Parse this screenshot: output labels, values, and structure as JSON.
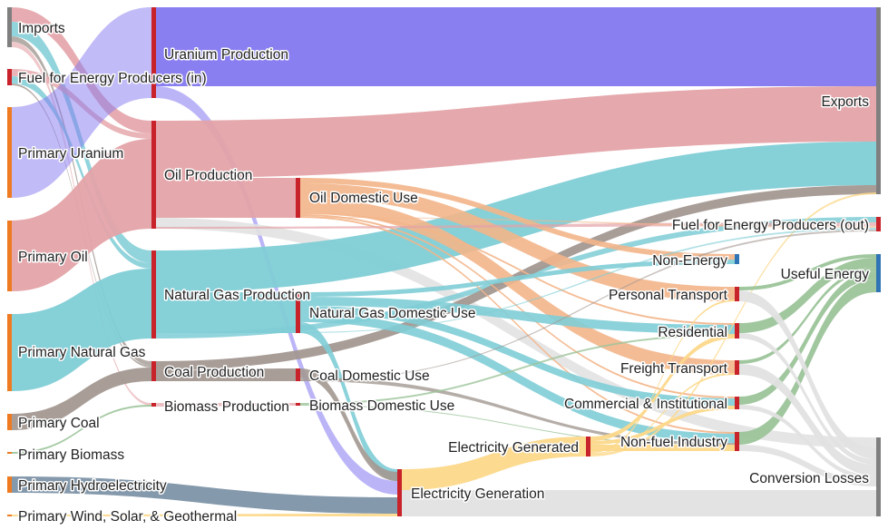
{
  "diagram": {
    "type": "sankey",
    "colors": {
      "uranium": "#8478f0",
      "oil": "#e4a3a8",
      "gas": "#7fcdd6",
      "coal": "#a39891",
      "hydro": "#7d93a8",
      "electricity": "#fcd88a",
      "oil_domestic": "#f3b58a",
      "losses": "#e2e2e2",
      "useful": "#9cc49a",
      "node_red": "#c8222a",
      "node_orange": "#ee7b22",
      "node_gray": "#7f7f7f",
      "node_blue": "#2f75b5"
    },
    "nodes": [
      {
        "id": "imports",
        "label": "Imports"
      },
      {
        "id": "fuel_in",
        "label": "Fuel for Energy Producers (in)"
      },
      {
        "id": "primary_uranium",
        "label": "Primary Uranium"
      },
      {
        "id": "primary_oil",
        "label": "Primary Oil"
      },
      {
        "id": "primary_gas",
        "label": "Primary Natural Gas"
      },
      {
        "id": "primary_coal",
        "label": "Primary Coal"
      },
      {
        "id": "primary_biomass",
        "label": "Primary Biomass"
      },
      {
        "id": "primary_hydro",
        "label": "Primary Hydroelectricity"
      },
      {
        "id": "primary_wind",
        "label": "Primary Wind, Solar, & Geothermal"
      },
      {
        "id": "uranium_prod",
        "label": "Uranium Production"
      },
      {
        "id": "oil_prod",
        "label": "Oil Production"
      },
      {
        "id": "gas_prod",
        "label": "Natural Gas Production"
      },
      {
        "id": "coal_prod",
        "label": "Coal Production"
      },
      {
        "id": "biomass_prod",
        "label": "Biomass Production"
      },
      {
        "id": "oil_dom",
        "label": "Oil Domestic Use"
      },
      {
        "id": "gas_dom",
        "label": "Natural Gas Domestic Use"
      },
      {
        "id": "coal_dom",
        "label": "Coal Domestic Use"
      },
      {
        "id": "biomass_dom",
        "label": "Biomass Domestic Use"
      },
      {
        "id": "elec_gen",
        "label": "Electricity Generation"
      },
      {
        "id": "elec_generated",
        "label": "Electricity Generated"
      },
      {
        "id": "non_energy",
        "label": "Non-Energy"
      },
      {
        "id": "personal_transport",
        "label": "Personal Transport"
      },
      {
        "id": "residential",
        "label": "Residential"
      },
      {
        "id": "freight_transport",
        "label": "Freight Transport"
      },
      {
        "id": "commercial",
        "label": "Commercial & Institutional"
      },
      {
        "id": "nonfuel_industry",
        "label": "Non-fuel Industry"
      },
      {
        "id": "exports",
        "label": "Exports"
      },
      {
        "id": "fuel_out",
        "label": "Fuel for Energy Producers (out)"
      },
      {
        "id": "useful_energy",
        "label": "Useful Energy"
      },
      {
        "id": "conversion_losses",
        "label": "Conversion Losses"
      }
    ]
  }
}
